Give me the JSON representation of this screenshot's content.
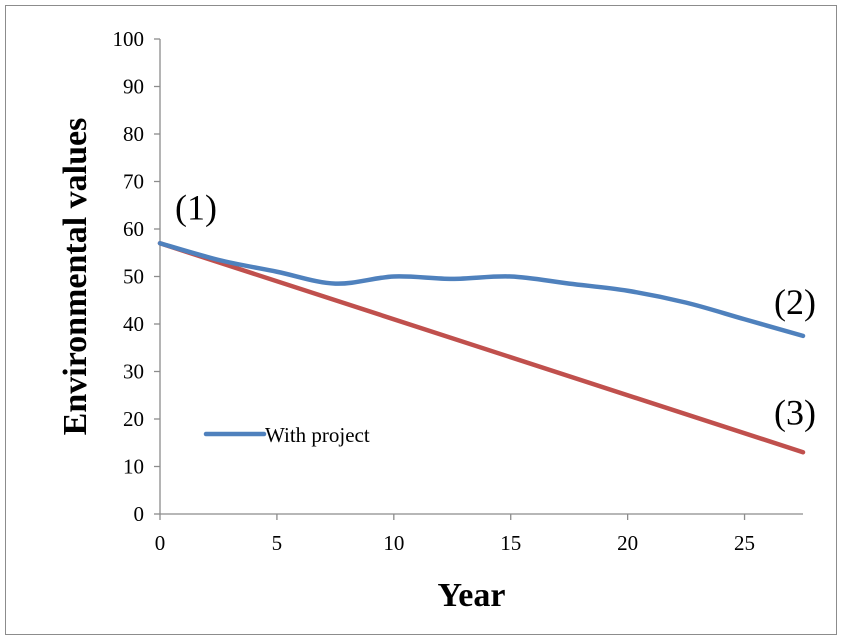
{
  "chart_data": {
    "type": "line",
    "title": "",
    "xlabel": "Year",
    "ylabel": "Environmental values",
    "xlim": [
      0,
      27.5
    ],
    "ylim": [
      0,
      100
    ],
    "x_ticks": [
      0,
      5,
      10,
      15,
      20,
      25
    ],
    "y_ticks": [
      0,
      10,
      20,
      30,
      40,
      50,
      60,
      70,
      80,
      90,
      100
    ],
    "grid": false,
    "legend": {
      "placement": "bottom-left",
      "entries": [
        "With project"
      ]
    },
    "series": [
      {
        "name": "With project",
        "color": "#4f81bd",
        "smooth": true,
        "x": [
          0,
          2.5,
          5,
          7.5,
          10,
          12.5,
          15,
          17.5,
          20,
          22.5,
          25,
          27.5
        ],
        "y": [
          57,
          53.5,
          51,
          48.5,
          50,
          49.5,
          50,
          48.5,
          47,
          44.5,
          41,
          37.5
        ]
      },
      {
        "color": "#c0504d",
        "smooth": false,
        "x": [
          0,
          27.5
        ],
        "y": [
          57,
          13
        ]
      }
    ],
    "annotations": [
      {
        "text": "(1)",
        "x": 0,
        "y": 57
      },
      {
        "text": "(2)",
        "x": 27.5,
        "y": 37.5
      },
      {
        "text": "(3)",
        "x": 27.5,
        "y": 13
      }
    ]
  }
}
